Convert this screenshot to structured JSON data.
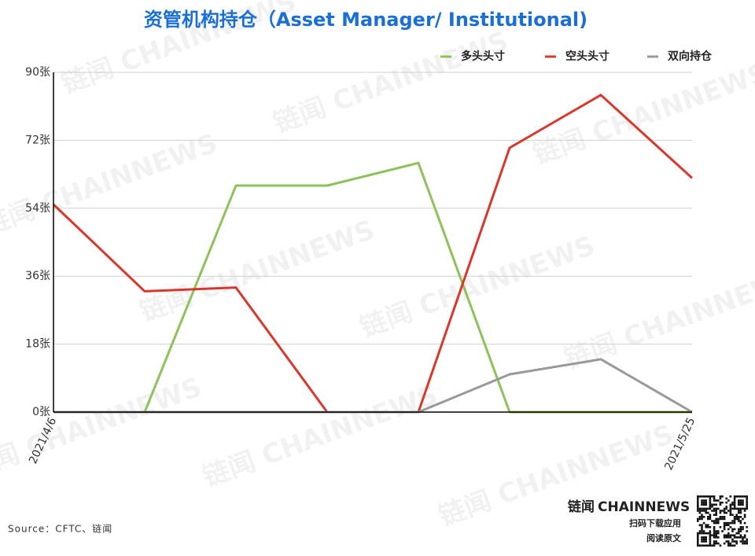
{
  "chart_data": {
    "type": "line",
    "title": "资管机构持仓（Asset Manager/ Institutional)",
    "categories": [
      "2021/4/6",
      null,
      null,
      null,
      null,
      null,
      null,
      "2021/5/25"
    ],
    "series": [
      {
        "name": "多头头寸",
        "color": "#8fc15b",
        "values": [
          0,
          0,
          60,
          60,
          66,
          0,
          0,
          0
        ]
      },
      {
        "name": "空头头寸",
        "color": "#d9372b",
        "values": [
          55,
          32,
          33,
          0,
          0,
          70,
          84,
          62
        ]
      },
      {
        "name": "双向持仓",
        "color": "#999999",
        "values": [
          0,
          0,
          0,
          0,
          0,
          10,
          14,
          0
        ]
      }
    ],
    "ylim": [
      0,
      90
    ],
    "yticks": [
      {
        "value": 0,
        "label": "0张"
      },
      {
        "value": 18,
        "label": "18张"
      },
      {
        "value": 36,
        "label": "36张"
      },
      {
        "value": 54,
        "label": "54张"
      },
      {
        "value": 72,
        "label": "72张"
      },
      {
        "value": 90,
        "label": "90张"
      }
    ],
    "grid": true,
    "legend": "top-right",
    "source": "Source：CFTC、链闻"
  },
  "branding": {
    "watermark": "链闻 CHAINNEWS",
    "logo_cn": "链闻",
    "logo_en": "CHAINNEWS",
    "scan": "扫码下载应用",
    "read": "阅读原文"
  }
}
